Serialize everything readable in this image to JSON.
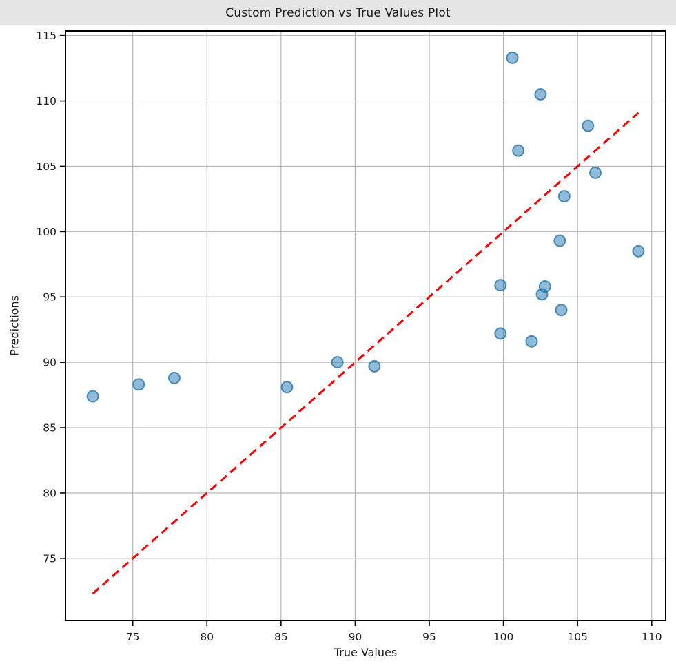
{
  "chart_data": {
    "type": "scatter",
    "title": "Custom Prediction vs True Values Plot",
    "xlabel": "True Values",
    "ylabel": "Predictions",
    "xlim": [
      70.46,
      110.94
    ],
    "ylim": [
      70.25,
      115.35
    ],
    "xticks": [
      75,
      80,
      85,
      90,
      95,
      100,
      105,
      110
    ],
    "yticks": [
      75,
      80,
      85,
      90,
      95,
      100,
      105,
      110,
      115
    ],
    "grid": true,
    "legend": "none",
    "series": [
      {
        "name": "predictions-scatter",
        "marker": "circle",
        "color": "#1f77b4",
        "alpha": 0.5,
        "points": [
          [
            72.3,
            87.4
          ],
          [
            75.4,
            88.3
          ],
          [
            77.8,
            88.8
          ],
          [
            85.4,
            88.1
          ],
          [
            88.8,
            90.0
          ],
          [
            91.3,
            89.7
          ],
          [
            99.8,
            92.2
          ],
          [
            99.8,
            95.9
          ],
          [
            100.6,
            113.3
          ],
          [
            101.0,
            106.2
          ],
          [
            101.9,
            91.6
          ],
          [
            102.5,
            110.5
          ],
          [
            102.6,
            95.2
          ],
          [
            102.8,
            95.8
          ],
          [
            103.8,
            99.3
          ],
          [
            103.9,
            94.0
          ],
          [
            104.1,
            102.7
          ],
          [
            105.7,
            108.1
          ],
          [
            106.2,
            104.5
          ],
          [
            109.1,
            98.5
          ]
        ]
      }
    ],
    "identity_line": {
      "x1": 72.3,
      "y1": 72.3,
      "x2": 109.1,
      "y2": 109.1,
      "color": "#ff0000",
      "style": "dashed"
    }
  },
  "colors": {
    "figure_background": "#ffffff",
    "title_band": "#e5e5e5",
    "grid": "#b0b0b0",
    "spine": "#000000",
    "text": "#1c1c1c",
    "point_fill": "rgba(31,119,180,0.5)",
    "point_edge": "rgba(25,105,160,0.72)",
    "line": "#ff0000"
  }
}
